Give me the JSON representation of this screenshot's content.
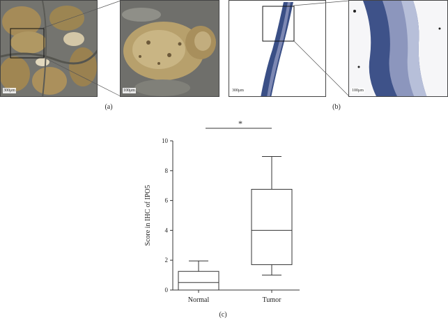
{
  "panels": {
    "a": {
      "label": "(a)",
      "scale_bars": [
        "300μm",
        "100μm"
      ],
      "stain_colors": [
        "#a58b58",
        "#6f6f6e",
        "#d4c7a7"
      ]
    },
    "b": {
      "label": "(b)",
      "scale_bars": [
        "300μm",
        "100μm"
      ],
      "stain_colors": [
        "#3a4f86",
        "#9aa3c4",
        "#f5f5f5"
      ]
    },
    "c": {
      "label": "(c)"
    }
  },
  "chart_data": {
    "type": "boxplot",
    "ylabel": "Score in IHC of IPO5",
    "ylim": [
      0,
      10
    ],
    "yticks": [
      0,
      2,
      4,
      6,
      8,
      10
    ],
    "significance": "*",
    "grid": false,
    "series": [
      {
        "category": "Normal",
        "whisker_low": 0,
        "q1": 0,
        "median": 0.5,
        "q3": 1.25,
        "whisker_high": 1.95
      },
      {
        "category": "Tumor",
        "whisker_low": 1.0,
        "q1": 1.7,
        "median": 4.0,
        "q3": 6.75,
        "whisker_high": 8.95
      }
    ]
  }
}
